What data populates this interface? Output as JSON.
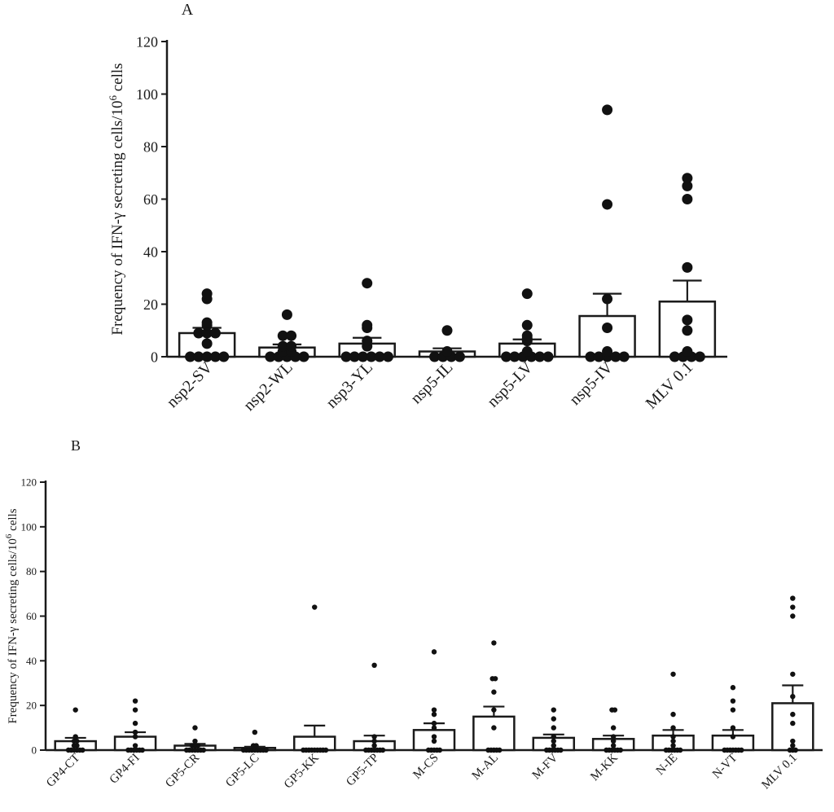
{
  "chart_data": [
    {
      "panel_label": "A",
      "type": "bar",
      "subtype": "bar-with-scatter-and-error-bars",
      "ylabel_main": "Frequency of IFN-γ secreting cells/10",
      "ylabel_sup": "6",
      "ylabel_tail": " cells",
      "xlabel": "",
      "ylim": [
        0,
        120
      ],
      "yticks": [
        0,
        20,
        40,
        60,
        80,
        100,
        120
      ],
      "categories": [
        "nsp2-SV",
        "nsp2-WL",
        "nsp3-YL",
        "nsp5-IL",
        "nsp5-LV",
        "nsp5-IV",
        "MLV 0.1"
      ],
      "means": [
        9,
        3.5,
        5,
        2,
        5,
        15.5,
        21
      ],
      "sem": [
        2,
        1.2,
        2.2,
        1.2,
        1.6,
        8.5,
        8
      ],
      "points": [
        [
          24,
          22,
          13,
          12,
          9,
          9,
          9,
          5,
          0,
          0,
          0,
          0,
          0
        ],
        [
          16,
          8,
          8,
          4,
          4,
          2,
          2,
          0,
          0,
          0,
          0,
          0
        ],
        [
          28,
          12,
          11,
          6,
          4,
          0,
          0,
          0,
          0,
          0,
          0
        ],
        [
          10,
          2,
          0,
          0,
          0,
          0
        ],
        [
          24,
          12,
          8,
          7,
          6,
          2,
          0,
          0,
          0,
          0,
          0,
          0
        ],
        [
          94,
          58,
          22,
          11,
          2,
          0,
          0,
          0,
          0,
          0
        ],
        [
          68,
          65,
          60,
          34,
          14,
          10,
          2,
          0,
          0,
          0,
          0
        ]
      ]
    },
    {
      "panel_label": "B",
      "type": "bar",
      "subtype": "bar-with-scatter-and-error-bars",
      "ylabel_main": "Frequency of IFN-γ secreting cells/10",
      "ylabel_sup": "6",
      "ylabel_tail": " cells",
      "xlabel": "",
      "ylim": [
        0,
        120
      ],
      "yticks": [
        0,
        20,
        40,
        60,
        80,
        100,
        120
      ],
      "categories": [
        "GP4-CT",
        "GP4-FI",
        "GP5-CR",
        "GP5-LC",
        "GP5-KK",
        "GP5-TP",
        "M-CS",
        "M-AL",
        "M-FV",
        "M-KK",
        "N-IE",
        "N-VT",
        "MLV 0.1"
      ],
      "means": [
        4,
        6,
        2,
        1,
        6,
        4,
        9,
        15,
        5.5,
        5,
        6.5,
        6.5,
        21
      ],
      "sem": [
        1.5,
        2,
        0.8,
        0.5,
        5,
        2.5,
        3,
        4.5,
        1.5,
        1.5,
        2.5,
        2.5,
        8
      ],
      "points": [
        [
          18,
          6,
          4,
          4,
          2,
          2,
          0,
          0,
          0,
          0,
          0,
          0
        ],
        [
          22,
          18,
          12,
          8,
          6,
          2,
          0,
          0,
          0,
          0,
          0,
          0
        ],
        [
          10,
          4,
          2,
          2,
          2,
          0,
          0,
          0,
          0,
          0,
          0,
          0
        ],
        [
          8,
          2,
          2,
          0,
          0,
          0,
          0,
          0,
          0,
          0,
          0,
          0
        ],
        [
          64,
          0,
          0,
          0,
          0,
          0,
          0,
          0,
          0,
          0
        ],
        [
          38,
          6,
          4,
          2,
          0,
          0,
          0,
          0,
          0,
          0,
          0
        ],
        [
          44,
          18,
          16,
          12,
          10,
          6,
          4,
          0,
          0,
          0,
          0,
          0
        ],
        [
          48,
          32,
          32,
          26,
          18,
          10,
          0,
          0,
          0,
          0,
          0
        ],
        [
          18,
          14,
          10,
          6,
          4,
          2,
          0,
          0,
          0,
          0,
          0,
          0
        ],
        [
          18,
          18,
          10,
          6,
          4,
          2,
          0,
          0,
          0,
          0,
          0,
          0
        ],
        [
          34,
          16,
          10,
          6,
          4,
          2,
          0,
          0,
          0,
          0,
          0,
          0
        ],
        [
          28,
          22,
          18,
          10,
          6,
          0,
          0,
          0,
          0,
          0,
          0,
          0
        ],
        [
          68,
          64,
          60,
          34,
          24,
          16,
          12,
          4,
          2,
          0,
          0,
          0
        ]
      ]
    }
  ]
}
